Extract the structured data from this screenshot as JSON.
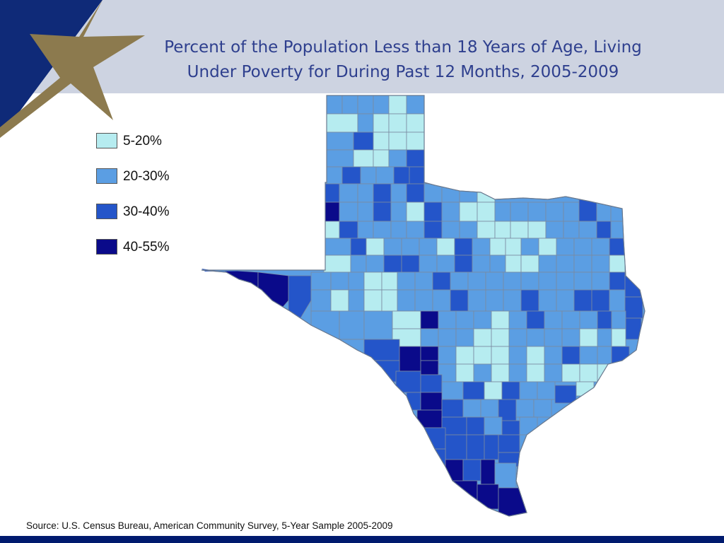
{
  "title": {
    "line1": "Percent of the Population Less than 18 Years of Age, Living",
    "line2": "Under Poverty for During Past 12 Months, 2005-2009"
  },
  "legend": [
    {
      "label": "5-20%",
      "color": "#b6ecf0"
    },
    {
      "label": "20-30%",
      "color": "#5b9ee3"
    },
    {
      "label": "30-40%",
      "color": "#2455c9"
    },
    {
      "label": "40-55%",
      "color": "#0a0a8a"
    }
  ],
  "source": "Source: U.S. Census Bureau, American Community Survey, 5-Year Sample 2005-2009",
  "colors": {
    "header_band": "#cdd3e1",
    "logo_navy": "#0f2a78",
    "logo_star": "#8c7a4e",
    "footer": "#001a6e",
    "county_border": "#7a8aa0"
  },
  "map": {
    "region": "Texas",
    "unit": "county",
    "regions_by_class": {
      "5-20%": [
        "northern Panhandle",
        "central Hill Country",
        "Houston suburbs",
        "Permian Basin"
      ],
      "20-30%": [
        "most counties statewide"
      ],
      "30-40%": [
        "Rio Grande border",
        "East Texas",
        "South Texas"
      ],
      "40-55%": [
        "Lower Rio Grande Valley",
        "Trans-Pecos",
        "Middle Rio Grande"
      ]
    }
  }
}
